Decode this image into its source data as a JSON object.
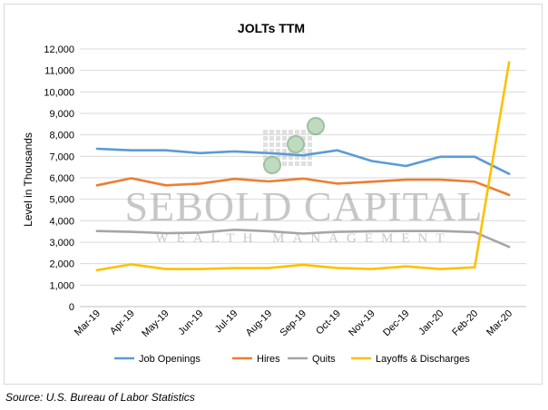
{
  "chart_data": {
    "type": "line",
    "title": "JOLTs TTM",
    "ylabel": "Level in Thousands",
    "xlabel": "",
    "ylim": [
      0,
      12000
    ],
    "yticks": [
      0,
      1000,
      2000,
      3000,
      4000,
      5000,
      6000,
      7000,
      8000,
      9000,
      10000,
      11000,
      12000
    ],
    "ytick_labels": [
      "0",
      "1,000",
      "2,000",
      "3,000",
      "4,000",
      "5,000",
      "6,000",
      "7,000",
      "8,000",
      "9,000",
      "10,000",
      "11,000",
      "12,000"
    ],
    "grid": true,
    "legend_position": "bottom",
    "categories": [
      "Mar-19",
      "Apr-19",
      "May-19",
      "Jun-19",
      "Jul-19",
      "Aug-19",
      "Sep-19",
      "Oct-19",
      "Nov-19",
      "Dec-19",
      "Jan-20",
      "Feb-20",
      "Mar-20"
    ],
    "series": [
      {
        "name": "Job Openings",
        "color": "#5b9bd5",
        "values": [
          7350,
          7280,
          7280,
          7150,
          7230,
          7150,
          7050,
          7280,
          6780,
          6550,
          6980,
          6980,
          6180
        ]
      },
      {
        "name": "Hires",
        "color": "#ed7d31",
        "values": [
          5650,
          5980,
          5650,
          5730,
          5950,
          5830,
          5960,
          5730,
          5820,
          5910,
          5910,
          5820,
          5200
        ]
      },
      {
        "name": "Quits",
        "color": "#a5a5a5",
        "values": [
          3520,
          3480,
          3420,
          3450,
          3580,
          3510,
          3400,
          3480,
          3510,
          3520,
          3520,
          3470,
          2780
        ]
      },
      {
        "name": "Layoffs & Discharges",
        "color": "#ffc000",
        "values": [
          1700,
          1970,
          1750,
          1750,
          1790,
          1800,
          1950,
          1800,
          1750,
          1870,
          1750,
          1830,
          11380
        ]
      }
    ]
  },
  "watermark": {
    "logo_name": "SEBOLD CAPITAL",
    "logo_tagline": "WEALTH MANAGEMENT",
    "icon": "sebold-capital-logo-icon"
  },
  "source": "Source: U.S. Bureau of Labor Statistics"
}
